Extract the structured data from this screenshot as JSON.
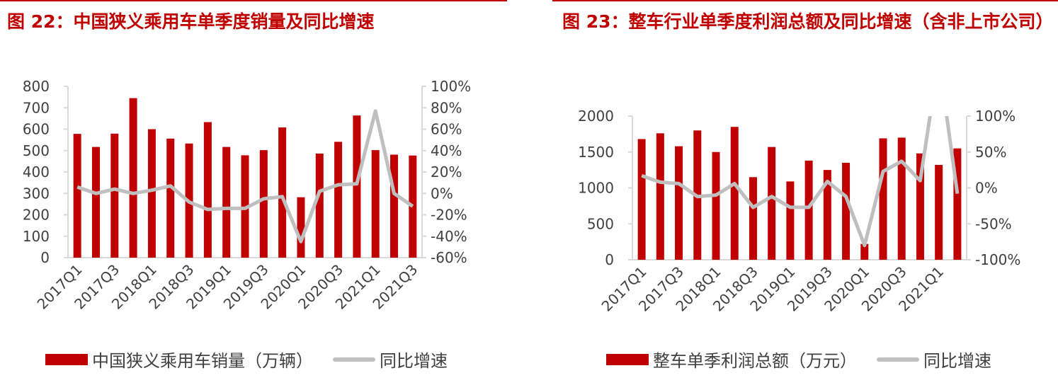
{
  "charts": [
    {
      "title": "图 22：中国狭义乘用车单季度销量及同比增速",
      "legend_bar": "中国狭义乘用车销量（万辆）",
      "legend_line": "同比增速",
      "colors": {
        "bar": "#c00000",
        "line": "#bfbfbf",
        "title": "#c00000"
      }
    },
    {
      "title": "图 23：整车行业单季度利润总额及同比增速（含非上市公司）",
      "legend_bar": "整车单季利润总额（万元）",
      "legend_line": "同比增速",
      "colors": {
        "bar": "#c00000",
        "line": "#bfbfbf",
        "title": "#c00000"
      }
    }
  ],
  "chart_data": [
    {
      "type": "bar",
      "title": "图 22：中国狭义乘用车单季度销量及同比增速",
      "categories": [
        "2017Q1",
        "2017Q2",
        "2017Q3",
        "2017Q4",
        "2018Q1",
        "2018Q2",
        "2018Q3",
        "2018Q4",
        "2019Q1",
        "2019Q2",
        "2019Q3",
        "2019Q4",
        "2020Q1",
        "2020Q2",
        "2020Q3",
        "2020Q4",
        "2021Q1",
        "2021Q2",
        "2021Q3"
      ],
      "x_tick_labels": [
        "2017Q1",
        "2017Q3",
        "2018Q1",
        "2018Q3",
        "2019Q1",
        "2019Q3",
        "2020Q1",
        "2020Q3",
        "2021Q1",
        "2021Q3"
      ],
      "series": [
        {
          "name": "中国狭义乘用车销量（万辆）",
          "type": "bar",
          "axis": "left",
          "values": [
            578,
            517,
            579,
            745,
            600,
            556,
            533,
            633,
            517,
            478,
            502,
            608,
            282,
            486,
            541,
            664,
            502,
            481,
            477
          ]
        },
        {
          "name": "同比增速",
          "type": "line",
          "axis": "right",
          "values": [
            6,
            0,
            4,
            0,
            3,
            7,
            -8,
            -15,
            -14,
            -14,
            -5,
            -3,
            -45,
            2,
            8,
            9,
            77,
            0,
            -12
          ]
        }
      ],
      "y_left": {
        "min": 0,
        "max": 800,
        "ticks": [
          "0",
          "100",
          "200",
          "300",
          "400",
          "500",
          "600",
          "700",
          "800"
        ]
      },
      "y_right": {
        "min": -60,
        "max": 100,
        "ticks": [
          "-60%",
          "-40%",
          "-20%",
          "0%",
          "20%",
          "40%",
          "60%",
          "80%",
          "100%"
        ]
      },
      "grid": false,
      "legend_position": "bottom"
    },
    {
      "type": "bar",
      "title": "图 23：整车行业单季度利润总额及同比增速（含非上市公司）",
      "categories": [
        "2017Q1",
        "2017Q2",
        "2017Q3",
        "2017Q4",
        "2018Q1",
        "2018Q2",
        "2018Q3",
        "2018Q4",
        "2019Q1",
        "2019Q2",
        "2019Q3",
        "2019Q4",
        "2020Q1",
        "2020Q2",
        "2020Q3",
        "2020Q4",
        "2021Q1",
        "2021Q2"
      ],
      "x_tick_labels": [
        "2017Q1",
        "2017Q3",
        "2018Q1",
        "2018Q3",
        "2019Q1",
        "2019Q3",
        "2020Q1",
        "2020Q3",
        "2021Q1"
      ],
      "series": [
        {
          "name": "整车单季利润总额（万元）",
          "type": "bar",
          "axis": "left",
          "values": [
            1680,
            1760,
            1580,
            1800,
            1500,
            1850,
            1150,
            1570,
            1090,
            1380,
            1250,
            1350,
            220,
            1690,
            1700,
            1480,
            1320,
            1550
          ]
        },
        {
          "name": "同比增速",
          "type": "line",
          "axis": "right",
          "values": [
            17,
            8,
            6,
            -12,
            -10,
            6,
            -27,
            -12,
            -27,
            -27,
            9,
            -12,
            -80,
            23,
            37,
            10,
            180,
            -8
          ]
        }
      ],
      "y_left": {
        "min": 0,
        "max": 2000,
        "ticks": [
          "0",
          "500",
          "1000",
          "1500",
          "2000"
        ]
      },
      "y_right": {
        "min": -100,
        "max": 100,
        "ticks": [
          "-100%",
          "-50%",
          "0%",
          "50%",
          "100%"
        ]
      },
      "grid": false,
      "legend_position": "bottom"
    }
  ]
}
